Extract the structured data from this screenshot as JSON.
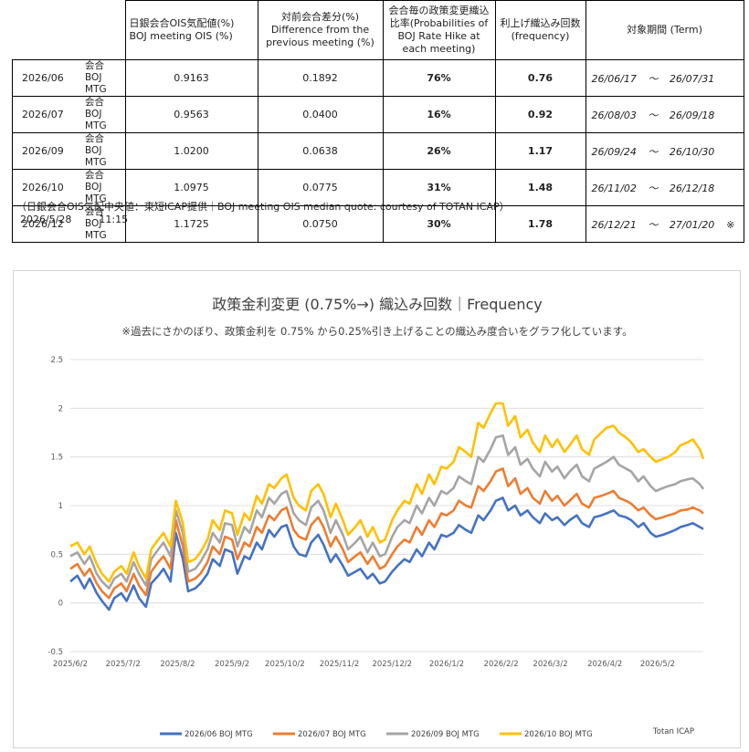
{
  "table": {
    "headers": [
      "日銀会合OIS気配値(%)\nBOJ meeting OIS (%)",
      "対前会合差分(%)\nDifference from the\nprevious meeting (%)",
      "会合毎の政策変更織込\n比率(Probabilities of\nBOJ Rate Hike at\neach meeting)",
      "利上げ織込み回数\n(frequency)",
      "対象期間 (Term)"
    ],
    "rows": [
      {
        "month": "2026/06",
        "label": "会合\nBOJ MTG",
        "ois": "0.9163",
        "diff": "0.1892",
        "prob": "76%",
        "freq": "0.76",
        "term_start": "26/06/17",
        "tilde": "～",
        "term_end": "26/07/31",
        "mark": ""
      },
      {
        "month": "2026/07",
        "label": "会合\nBOJ MTG",
        "ois": "0.9563",
        "diff": "0.0400",
        "prob": "16%",
        "freq": "0.92",
        "term_start": "26/08/03",
        "tilde": "～",
        "term_end": "26/09/18",
        "mark": ""
      },
      {
        "month": "2026/09",
        "label": "会合\nBOJ MTG",
        "ois": "1.0200",
        "diff": "0.0638",
        "prob": "26%",
        "freq": "1.17",
        "term_start": "26/09/24",
        "tilde": "～",
        "term_end": "26/10/30",
        "mark": ""
      },
      {
        "month": "2026/10",
        "label": "会合\nBOJ MTG",
        "ois": "1.0975",
        "diff": "0.0775",
        "prob": "31%",
        "freq": "1.48",
        "term_start": "26/11/02",
        "tilde": "～",
        "term_end": "26/12/18",
        "mark": ""
      },
      {
        "month": "2026/12",
        "label": "会合\nBOJ MTG",
        "ois": "1.1725",
        "diff": "0.0750",
        "prob": "30%",
        "freq": "1.78",
        "term_start": "26/12/21",
        "tilde": "～",
        "term_end": "27/01/20",
        "mark": "※"
      }
    ],
    "source_note": "（日銀会合OIS気配中央値：東短ICAP提供｜BOJ meeting OIS median quote: courtesy of TOTAN ICAP）",
    "timestamp_date": "2026/5/28",
    "timestamp_time": "11:15"
  },
  "chart_data": {
    "type": "line",
    "title": "政策金利変更 (0.75%→) 織込み回数｜Frequency",
    "subtitle": "※過去にさかのぼり、政策金利を 0.75% から0.25%引き上げることの織込み度合いをグラフ化しています。",
    "xlabel": "",
    "ylabel": "",
    "ylim": [
      -0.5,
      2.5
    ],
    "yticks": [
      "2.5",
      "2",
      "1.5",
      "1",
      "0.5",
      "0",
      "-0.5"
    ],
    "ytick_values": [
      2.5,
      2,
      1.5,
      1,
      0.5,
      0,
      -0.5
    ],
    "xticks": [
      "2025/6/2",
      "2025/7/2",
      "2025/8/2",
      "2025/9/2",
      "2025/10/2",
      "2025/11/2",
      "2025/12/2",
      "2026/1/2",
      "2026/2/2",
      "2026/3/2",
      "2026/4/2",
      "2026/5/2"
    ],
    "x_start": "2025/6/2",
    "x_end": "2026/5/28",
    "grid": "horizontal",
    "legend_position": "bottom",
    "source_label": "Totan ICAP",
    "x": [
      "2025/6/2",
      "2025/6/6",
      "2025/6/10",
      "2025/6/13",
      "2025/6/17",
      "2025/6/20",
      "2025/6/24",
      "2025/6/27",
      "2025/7/1",
      "2025/7/4",
      "2025/7/8",
      "2025/7/11",
      "2025/7/15",
      "2025/7/18",
      "2025/7/22",
      "2025/7/25",
      "2025/7/29",
      "2025/8/1",
      "2025/8/5",
      "2025/8/8",
      "2025/8/12",
      "2025/8/15",
      "2025/8/19",
      "2025/8/22",
      "2025/8/26",
      "2025/8/29",
      "2025/9/2",
      "2025/9/5",
      "2025/9/9",
      "2025/9/12",
      "2025/9/16",
      "2025/9/19",
      "2025/9/23",
      "2025/9/26",
      "2025/9/30",
      "2025/10/3",
      "2025/10/7",
      "2025/10/10",
      "2025/10/14",
      "2025/10/17",
      "2025/10/21",
      "2025/10/24",
      "2025/10/28",
      "2025/10/31",
      "2025/11/4",
      "2025/11/7",
      "2025/11/11",
      "2025/11/14",
      "2025/11/18",
      "2025/11/21",
      "2025/11/25",
      "2025/11/28",
      "2025/12/2",
      "2025/12/5",
      "2025/12/9",
      "2025/12/12",
      "2025/12/16",
      "2025/12/19",
      "2025/12/23",
      "2025/12/26",
      "2025/12/30",
      "2026/1/2",
      "2026/1/6",
      "2026/1/9",
      "2026/1/13",
      "2026/1/16",
      "2026/1/20",
      "2026/1/23",
      "2026/1/27",
      "2026/1/30",
      "2026/2/3",
      "2026/2/6",
      "2026/2/10",
      "2026/2/13",
      "2026/2/17",
      "2026/2/20",
      "2026/2/24",
      "2026/2/27",
      "2026/3/3",
      "2026/3/6",
      "2026/3/10",
      "2026/3/13",
      "2026/3/17",
      "2026/3/20",
      "2026/3/24",
      "2026/3/27",
      "2026/3/31",
      "2026/4/3",
      "2026/4/7",
      "2026/4/10",
      "2026/4/14",
      "2026/4/17",
      "2026/4/21",
      "2026/4/24",
      "2026/4/28",
      "2026/5/1",
      "2026/5/5",
      "2026/5/8",
      "2026/5/12",
      "2026/5/15",
      "2026/5/19",
      "2026/5/22",
      "2026/5/26",
      "2026/5/28"
    ],
    "series": [
      {
        "name": "2026/06 BOJ MTG",
        "color": "#4472c4",
        "values": [
          0.22,
          0.28,
          0.15,
          0.25,
          0.1,
          0.02,
          -0.07,
          0.05,
          0.1,
          0.02,
          0.18,
          0.05,
          -0.04,
          0.2,
          0.28,
          0.35,
          0.22,
          0.72,
          0.45,
          0.12,
          0.15,
          0.2,
          0.3,
          0.45,
          0.38,
          0.55,
          0.52,
          0.3,
          0.48,
          0.45,
          0.62,
          0.55,
          0.75,
          0.68,
          0.78,
          0.8,
          0.58,
          0.5,
          0.48,
          0.62,
          0.7,
          0.6,
          0.42,
          0.5,
          0.38,
          0.28,
          0.32,
          0.35,
          0.25,
          0.3,
          0.2,
          0.22,
          0.32,
          0.38,
          0.45,
          0.42,
          0.55,
          0.48,
          0.62,
          0.55,
          0.7,
          0.68,
          0.72,
          0.8,
          0.75,
          0.72,
          0.9,
          0.85,
          0.95,
          1.05,
          1.08,
          0.95,
          1.0,
          0.9,
          0.95,
          0.88,
          0.82,
          0.92,
          0.85,
          0.88,
          0.8,
          0.85,
          0.9,
          0.82,
          0.78,
          0.88,
          0.9,
          0.92,
          0.95,
          0.9,
          0.88,
          0.85,
          0.78,
          0.82,
          0.72,
          0.68,
          0.7,
          0.72,
          0.75,
          0.78,
          0.8,
          0.82,
          0.78,
          0.76
        ]
      },
      {
        "name": "2026/07 BOJ MTG",
        "color": "#ed7d31",
        "values": [
          0.35,
          0.4,
          0.28,
          0.35,
          0.2,
          0.12,
          0.05,
          0.15,
          0.2,
          0.12,
          0.3,
          0.18,
          0.08,
          0.32,
          0.42,
          0.48,
          0.35,
          0.85,
          0.58,
          0.22,
          0.25,
          0.3,
          0.42,
          0.58,
          0.5,
          0.68,
          0.65,
          0.45,
          0.62,
          0.58,
          0.78,
          0.72,
          0.9,
          0.85,
          0.95,
          0.98,
          0.75,
          0.68,
          0.65,
          0.8,
          0.88,
          0.78,
          0.58,
          0.68,
          0.55,
          0.42,
          0.48,
          0.52,
          0.4,
          0.48,
          0.35,
          0.38,
          0.5,
          0.58,
          0.65,
          0.62,
          0.78,
          0.7,
          0.85,
          0.78,
          0.92,
          0.9,
          0.95,
          1.05,
          1.0,
          0.98,
          1.2,
          1.15,
          1.25,
          1.35,
          1.38,
          1.2,
          1.28,
          1.12,
          1.18,
          1.08,
          1.02,
          1.15,
          1.05,
          1.1,
          1.0,
          1.05,
          1.12,
          1.02,
          0.98,
          1.08,
          1.1,
          1.12,
          1.15,
          1.08,
          1.05,
          1.02,
          0.95,
          0.98,
          0.9,
          0.86,
          0.88,
          0.9,
          0.92,
          0.95,
          0.96,
          0.98,
          0.95,
          0.92
        ]
      },
      {
        "name": "2026/09 BOJ MTG",
        "color": "#a5a5a5",
        "values": [
          0.48,
          0.52,
          0.4,
          0.48,
          0.3,
          0.22,
          0.15,
          0.25,
          0.3,
          0.22,
          0.42,
          0.3,
          0.18,
          0.45,
          0.55,
          0.62,
          0.48,
          0.95,
          0.72,
          0.32,
          0.35,
          0.42,
          0.55,
          0.72,
          0.62,
          0.82,
          0.8,
          0.58,
          0.78,
          0.72,
          0.95,
          0.88,
          1.08,
          1.02,
          1.12,
          1.15,
          0.92,
          0.85,
          0.8,
          0.98,
          1.05,
          0.95,
          0.72,
          0.85,
          0.7,
          0.55,
          0.62,
          0.68,
          0.52,
          0.62,
          0.48,
          0.5,
          0.68,
          0.78,
          0.85,
          0.82,
          1.0,
          0.92,
          1.08,
          1.0,
          1.15,
          1.12,
          1.18,
          1.3,
          1.25,
          1.22,
          1.5,
          1.45,
          1.58,
          1.7,
          1.72,
          1.52,
          1.6,
          1.42,
          1.48,
          1.38,
          1.3,
          1.45,
          1.35,
          1.4,
          1.28,
          1.35,
          1.42,
          1.3,
          1.25,
          1.38,
          1.42,
          1.45,
          1.5,
          1.42,
          1.38,
          1.35,
          1.25,
          1.3,
          1.2,
          1.15,
          1.18,
          1.2,
          1.22,
          1.25,
          1.27,
          1.28,
          1.22,
          1.17
        ]
      },
      {
        "name": "2026/10 BOJ MTG",
        "color": "#ffc000",
        "values": [
          0.58,
          0.62,
          0.5,
          0.58,
          0.4,
          0.3,
          0.22,
          0.32,
          0.38,
          0.3,
          0.52,
          0.38,
          0.25,
          0.55,
          0.65,
          0.72,
          0.58,
          1.05,
          0.82,
          0.42,
          0.45,
          0.52,
          0.65,
          0.85,
          0.75,
          0.95,
          0.92,
          0.7,
          0.92,
          0.85,
          1.1,
          1.02,
          1.22,
          1.18,
          1.28,
          1.32,
          1.08,
          1.0,
          0.95,
          1.15,
          1.22,
          1.12,
          0.88,
          1.02,
          0.85,
          0.7,
          0.78,
          0.85,
          0.68,
          0.78,
          0.62,
          0.65,
          0.85,
          0.95,
          1.05,
          1.02,
          1.22,
          1.12,
          1.32,
          1.22,
          1.4,
          1.38,
          1.45,
          1.6,
          1.55,
          1.5,
          1.85,
          1.8,
          1.95,
          2.05,
          2.05,
          1.82,
          1.92,
          1.7,
          1.78,
          1.65,
          1.55,
          1.72,
          1.6,
          1.68,
          1.55,
          1.62,
          1.72,
          1.58,
          1.52,
          1.68,
          1.75,
          1.8,
          1.82,
          1.75,
          1.7,
          1.65,
          1.55,
          1.58,
          1.5,
          1.45,
          1.48,
          1.5,
          1.55,
          1.62,
          1.65,
          1.68,
          1.58,
          1.48
        ]
      }
    ]
  }
}
